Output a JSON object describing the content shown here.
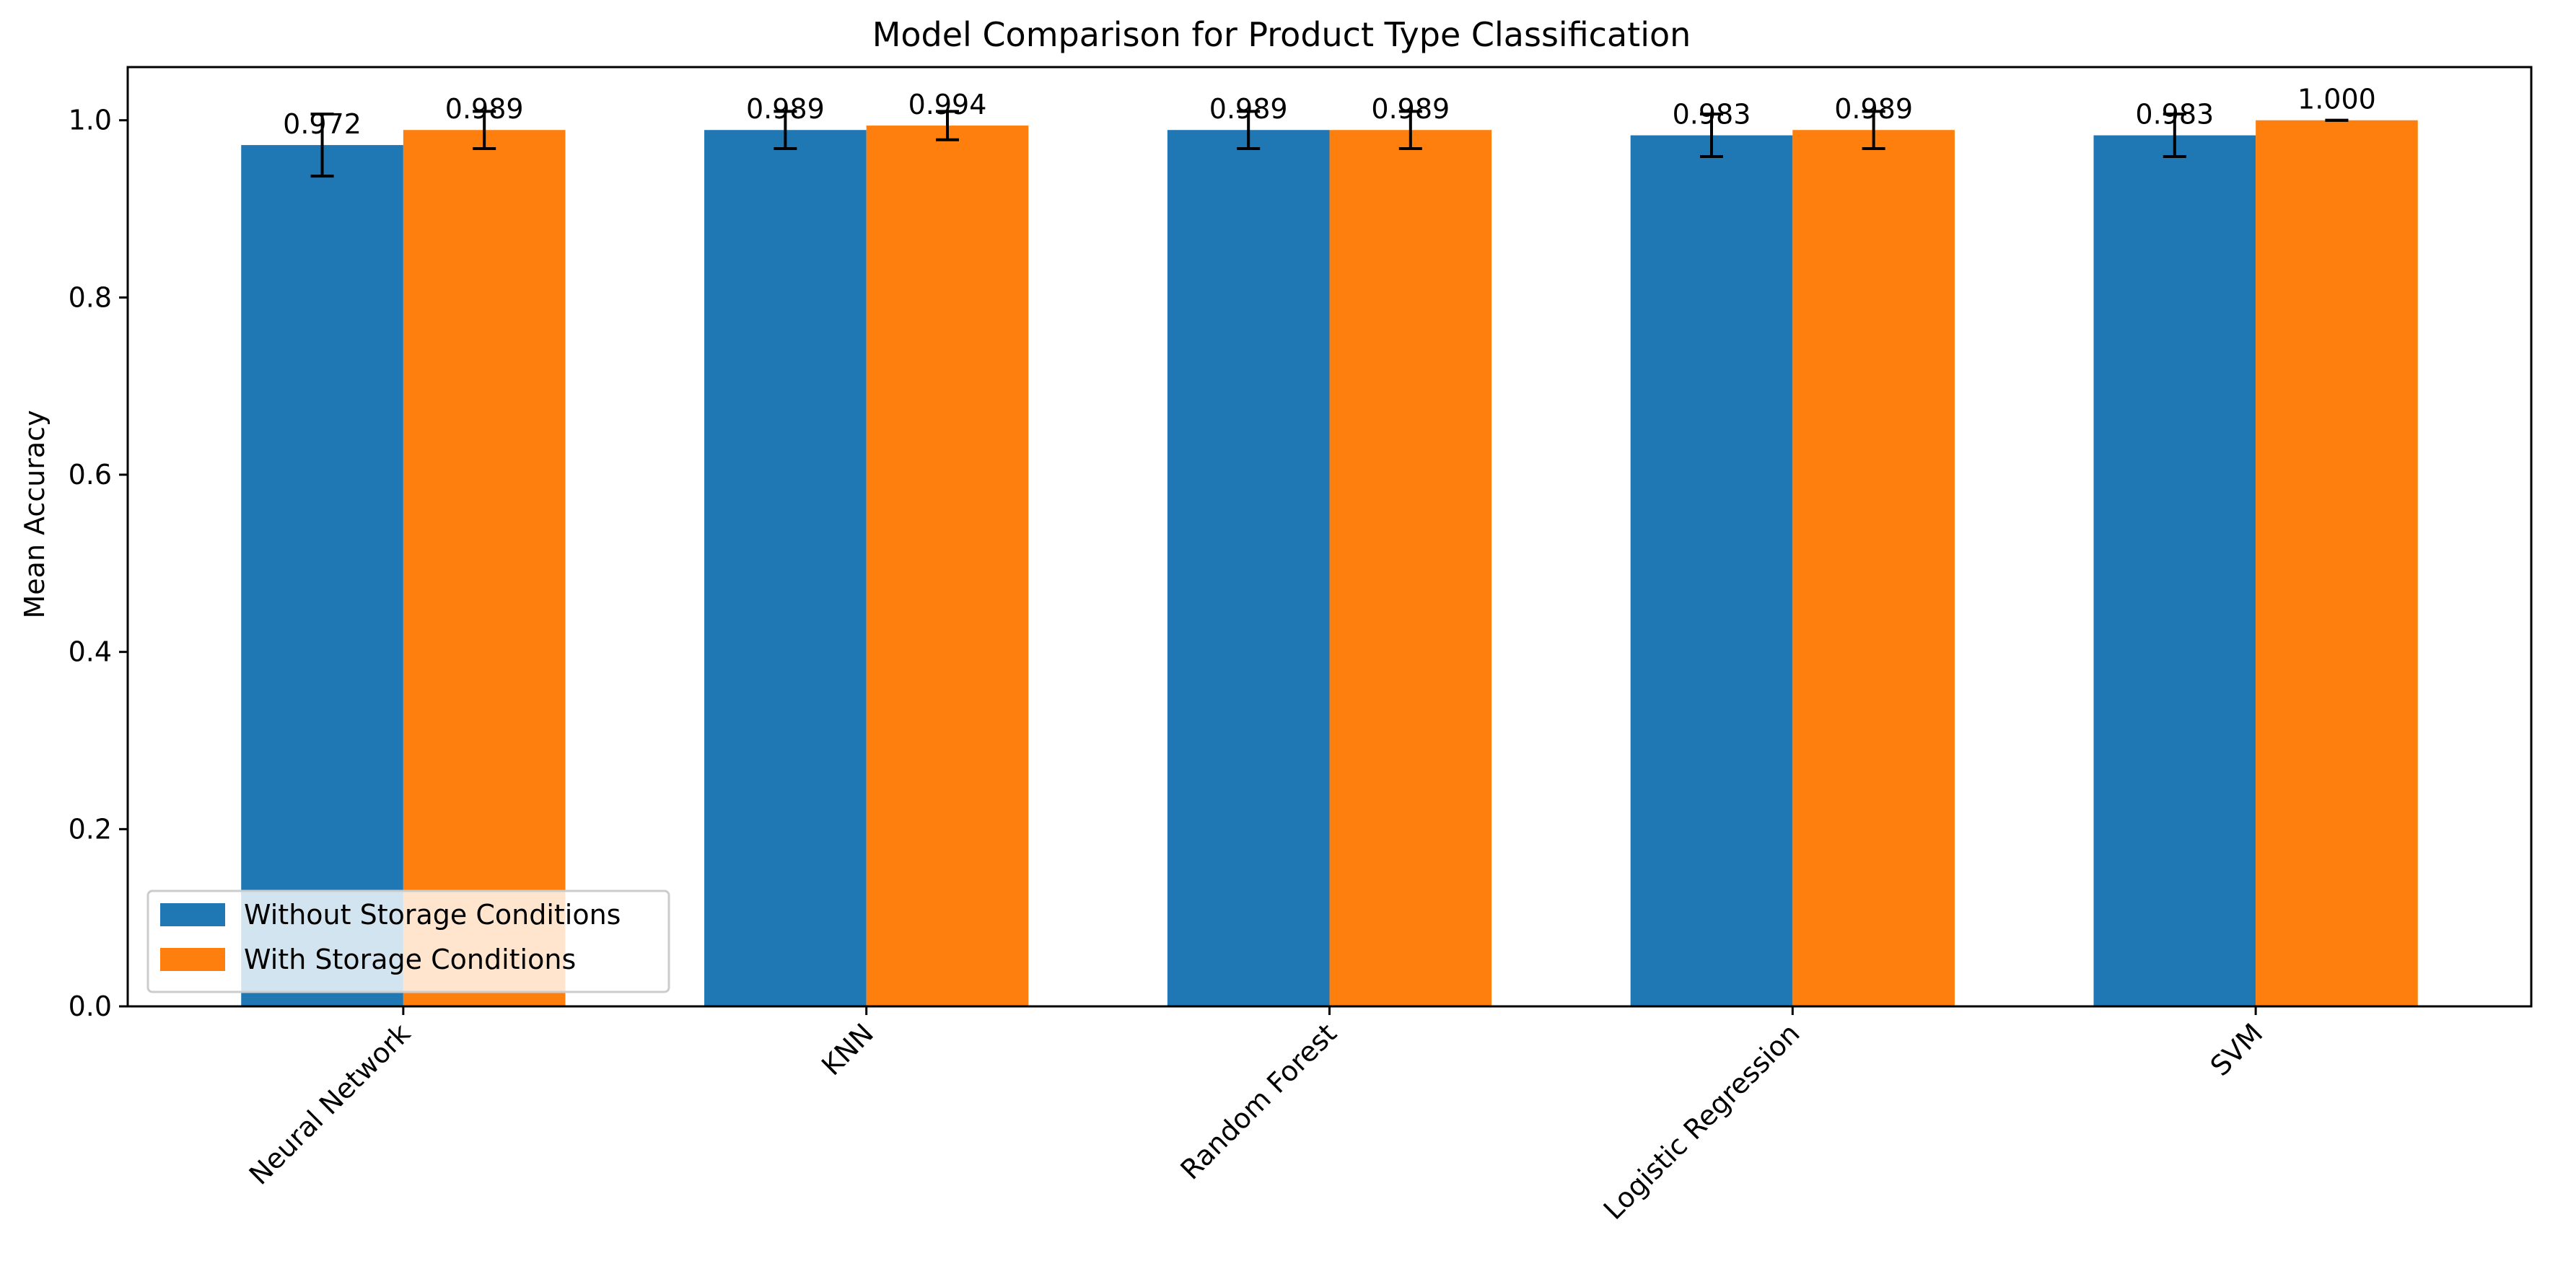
{
  "chart_data": {
    "type": "bar",
    "title": "Model Comparison for Product Type Classification",
    "xlabel": "",
    "ylabel": "Mean Accuracy",
    "ylim": [
      0,
      1.06
    ],
    "yticks": [
      0.0,
      0.2,
      0.4,
      0.6,
      0.8,
      1.0
    ],
    "ytick_labels": [
      "0.0",
      "0.2",
      "0.4",
      "0.6",
      "0.8",
      "1.0"
    ],
    "categories": [
      "Neural Network",
      "KNN",
      "Random Forest",
      "Logistic Regression",
      "SVM"
    ],
    "series": [
      {
        "name": "Without Storage Conditions",
        "color": "#1f77b4",
        "values": [
          0.972,
          0.989,
          0.989,
          0.983,
          0.983
        ],
        "labels": [
          "0.972",
          "0.989",
          "0.989",
          "0.983",
          "0.983"
        ],
        "errors": [
          0.035,
          0.021,
          0.021,
          0.024,
          0.024
        ]
      },
      {
        "name": "With Storage Conditions",
        "color": "#ff7f0e",
        "values": [
          0.989,
          0.994,
          0.989,
          0.989,
          1.0
        ],
        "labels": [
          "0.989",
          "0.994",
          "0.989",
          "0.989",
          "1.000"
        ],
        "errors": [
          0.021,
          0.016,
          0.021,
          0.021,
          0.0
        ]
      }
    ],
    "error_bars": true,
    "legend": "lower-left",
    "grid": false
  }
}
